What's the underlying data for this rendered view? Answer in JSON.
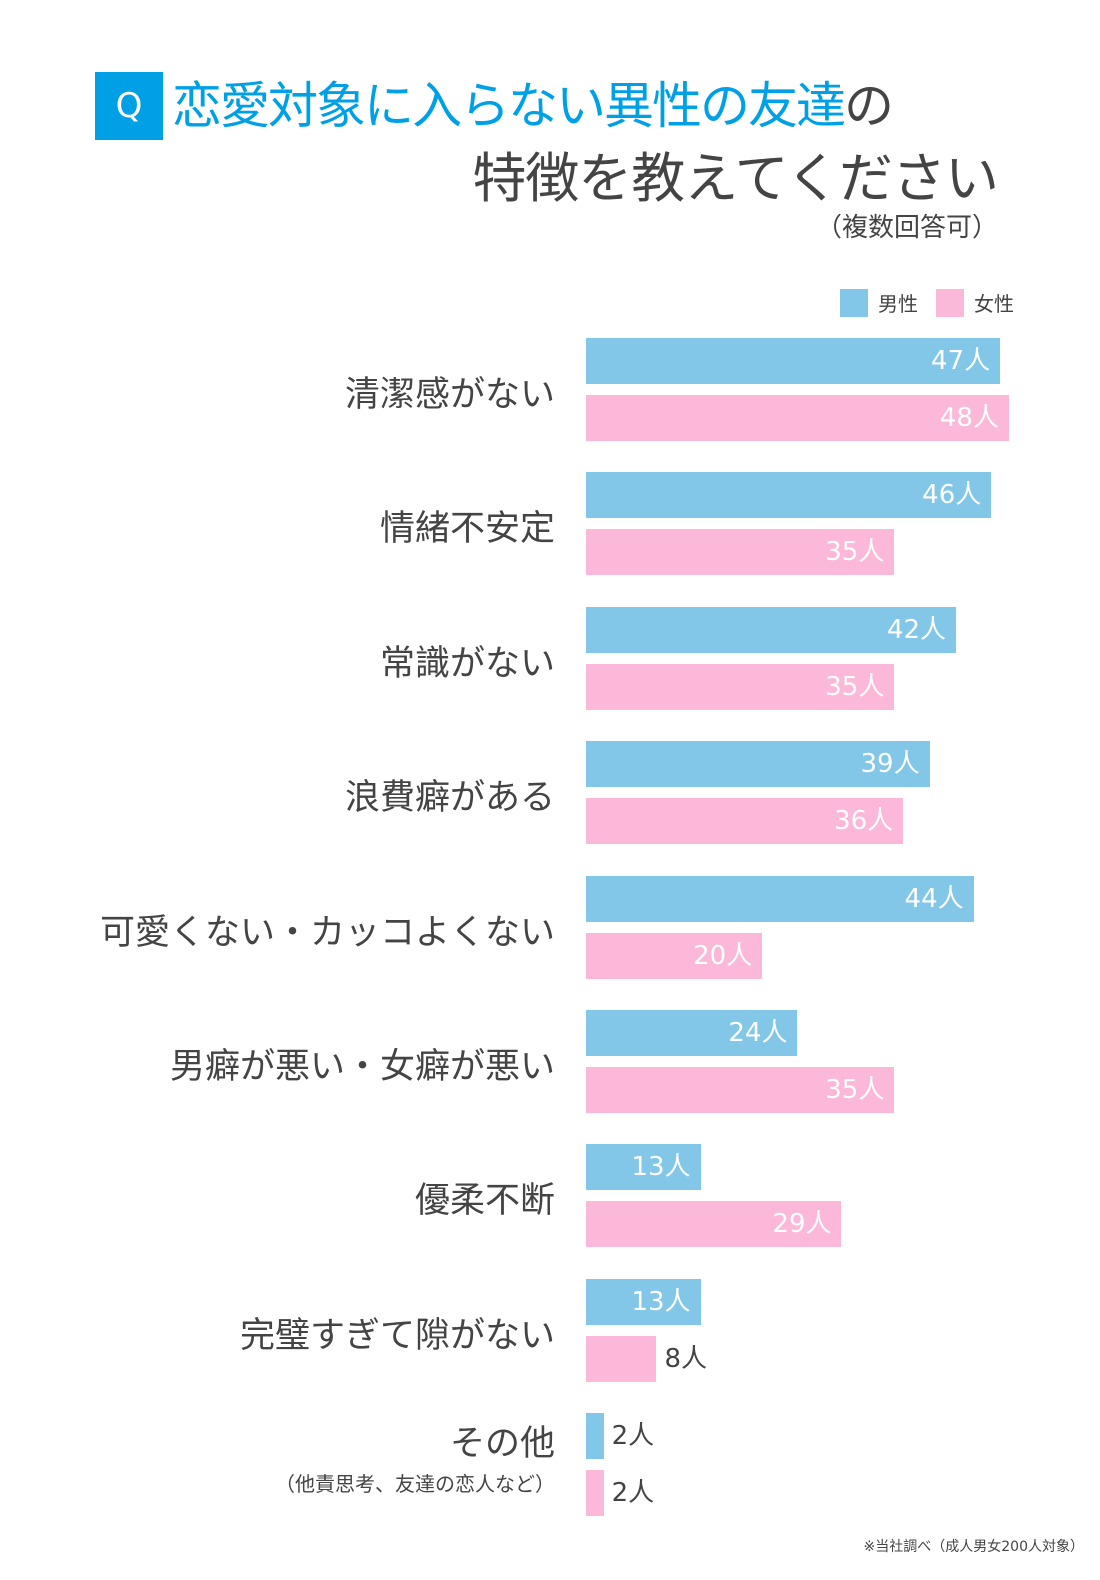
{
  "header": {
    "q_badge": "Q",
    "title_highlight": "恋愛対象に入らない異性の友達",
    "title_suffix": "の",
    "title_line2": "特徴を教えてください",
    "note": "（複数回答可）"
  },
  "footnote": "※当社調べ（成人男女200人対象）",
  "chart_data": {
    "type": "bar",
    "orientation": "horizontal",
    "title": "恋愛対象に入らない異性の友達の特徴を教えてください",
    "unit": "人",
    "categories": [
      "清潔感がない",
      "情緒不安定",
      "常識がない",
      "浪費癖がある",
      "可愛くない・カッコよくない",
      "男癖が悪い・女癖が悪い",
      "優柔不断",
      "完璧すぎて隙がない",
      "その他"
    ],
    "category_subtitles": [
      "",
      "",
      "",
      "",
      "",
      "",
      "",
      "",
      "（他責思考、友達の恋人など）"
    ],
    "series": [
      {
        "name": "男性",
        "color": "#82c6e8",
        "values": [
          47,
          46,
          42,
          39,
          44,
          24,
          13,
          13,
          2
        ],
        "labels": [
          "47人",
          "46人",
          "42人",
          "39人",
          "44人",
          "24人",
          "13人",
          "13人",
          "2人"
        ]
      },
      {
        "name": "女性",
        "color": "#fbb8d8",
        "values": [
          48,
          35,
          35,
          36,
          20,
          35,
          29,
          8,
          2
        ],
        "labels": [
          "48人",
          "35人",
          "35人",
          "36人",
          "20人",
          "35人",
          "29人",
          "8人",
          "2人"
        ]
      }
    ],
    "legend": "top-right",
    "grid": false
  }
}
